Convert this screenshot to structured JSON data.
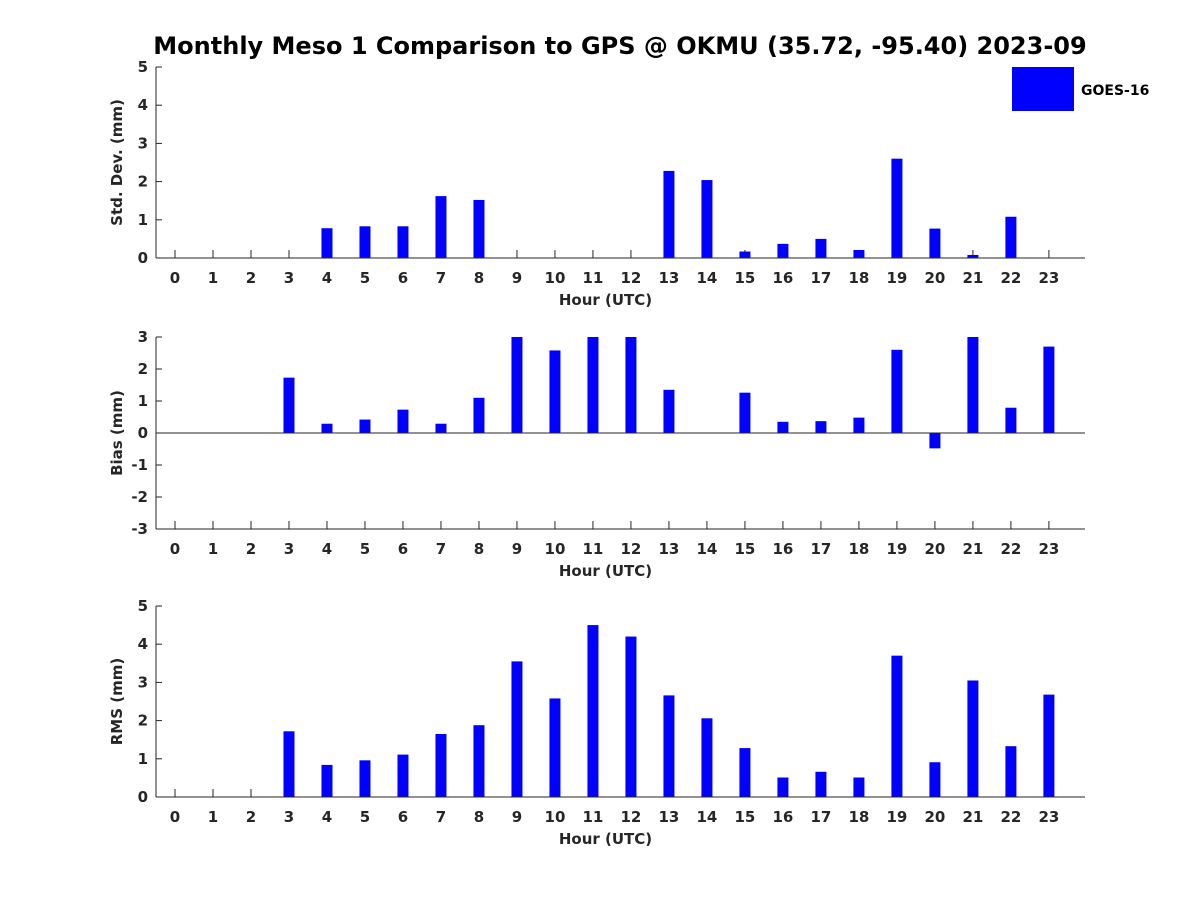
{
  "chart_data": {
    "title": "Monthly Meso 1 Comparison to GPS @ OKMU (35.72, -95.40) 2023-09",
    "legend": {
      "label": "GOES-16",
      "color": "#0000ff",
      "placement": "top-right"
    },
    "panels": [
      {
        "type": "bar",
        "xlabel": "Hour (UTC)",
        "ylabel": "Std. Dev. (mm)",
        "ylim": [
          0,
          5
        ],
        "yticks": [
          "0",
          "1",
          "2",
          "3",
          "4",
          "5"
        ],
        "categories": [
          "0",
          "1",
          "2",
          "3",
          "4",
          "5",
          "6",
          "7",
          "8",
          "9",
          "10",
          "11",
          "12",
          "13",
          "14",
          "15",
          "16",
          "17",
          "18",
          "19",
          "20",
          "21",
          "22",
          "23"
        ],
        "values": [
          0,
          0,
          0,
          0,
          0.78,
          0.83,
          0.83,
          1.62,
          1.52,
          0,
          0,
          0,
          0,
          2.28,
          2.04,
          0.17,
          0.37,
          0.5,
          0.21,
          2.6,
          0.77,
          0.08,
          1.08,
          0
        ],
        "color": "#0000ff"
      },
      {
        "type": "bar",
        "xlabel": "Hour (UTC)",
        "ylabel": "Bias (mm)",
        "ylim": [
          -3,
          3
        ],
        "yticks": [
          "-3",
          "-2",
          "-1",
          "0",
          "1",
          "2",
          "3"
        ],
        "categories": [
          "0",
          "1",
          "2",
          "3",
          "4",
          "5",
          "6",
          "7",
          "8",
          "9",
          "10",
          "11",
          "12",
          "13",
          "14",
          "15",
          "16",
          "17",
          "18",
          "19",
          "20",
          "21",
          "22",
          "23"
        ],
        "values": [
          0,
          0,
          0,
          1.73,
          0.29,
          0.42,
          0.73,
          0.29,
          1.1,
          3.0,
          2.58,
          3.0,
          3.0,
          1.35,
          0,
          1.26,
          0.35,
          0.37,
          0.48,
          2.6,
          -0.48,
          3.0,
          0.79,
          2.7
        ],
        "color": "#0000ff"
      },
      {
        "type": "bar",
        "xlabel": "Hour (UTC)",
        "ylabel": "RMS (mm)",
        "ylim": [
          0,
          5
        ],
        "yticks": [
          "0",
          "1",
          "2",
          "3",
          "4",
          "5"
        ],
        "categories": [
          "0",
          "1",
          "2",
          "3",
          "4",
          "5",
          "6",
          "7",
          "8",
          "9",
          "10",
          "11",
          "12",
          "13",
          "14",
          "15",
          "16",
          "17",
          "18",
          "19",
          "20",
          "21",
          "22",
          "23"
        ],
        "values": [
          0,
          0,
          0,
          1.72,
          0.84,
          0.96,
          1.11,
          1.65,
          1.88,
          3.55,
          2.58,
          4.5,
          4.2,
          2.66,
          2.06,
          1.28,
          0.51,
          0.66,
          0.51,
          3.7,
          0.91,
          3.05,
          1.33,
          2.68
        ],
        "color": "#0000ff"
      }
    ]
  }
}
